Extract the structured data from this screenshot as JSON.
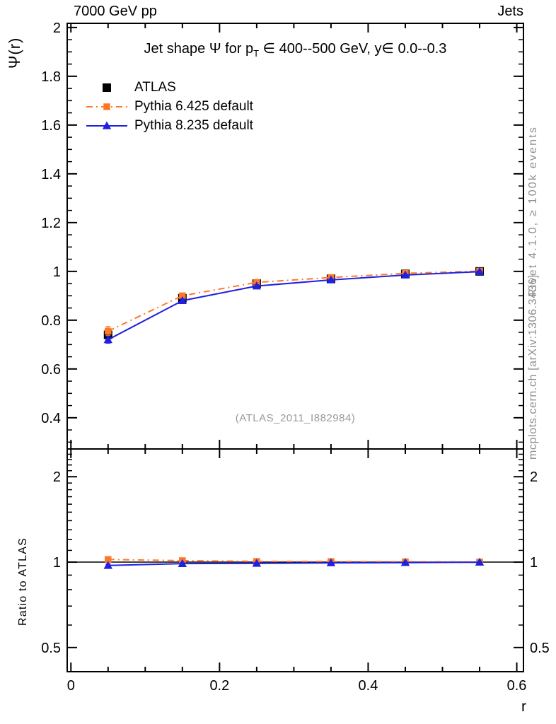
{
  "chart_data": {
    "type": "line",
    "header": {
      "left": "7000 GeV pp",
      "right": "Jets"
    },
    "main_panel": {
      "ylabel": "Ψ(r)",
      "title_pre": "Jet shape Ψ for p",
      "title_sub": "T",
      "title_post": " ∈ 400--500 GeV, y∈ 0.0--0.3",
      "watermark": "(ATLAS_2011_I882984)",
      "yscale": "linear",
      "ylim": [
        0.272,
        2.017
      ],
      "ytick_values": [
        0.4,
        0.6,
        0.8,
        1.0,
        1.2,
        1.4,
        1.6,
        1.8,
        2.0
      ],
      "ytick_labels": [
        "0.4",
        "0.6",
        "0.8",
        "1",
        "1.2",
        "1.4",
        "1.6",
        "1.8",
        "2"
      ],
      "yminor_step": 0.05
    },
    "ratio_panel": {
      "ylabel": "Ratio to ATLAS",
      "yscale": "log",
      "ylim": [
        0.411,
        2.505
      ],
      "ytick_values": [
        0.5,
        1.0,
        2.0
      ],
      "ytick_labels": [
        "0.5",
        "1",
        "2"
      ],
      "yminor_values": [
        0.6,
        0.7,
        0.8,
        0.9,
        1.1,
        1.2,
        1.3,
        1.4,
        1.5,
        1.6,
        1.7,
        1.8,
        1.9,
        2.1,
        2.2,
        2.3,
        2.4
      ],
      "reference_value": 1.0
    },
    "xaxis": {
      "label": "r",
      "xlim": [
        -0.005,
        0.609
      ],
      "tick_values": [
        0,
        0.2,
        0.4,
        0.6
      ],
      "tick_labels": [
        "0",
        "0.2",
        "0.4",
        "0.6"
      ],
      "minor_step": 0.05
    },
    "x": [
      0.05,
      0.15,
      0.25,
      0.35,
      0.45,
      0.55
    ],
    "series": [
      {
        "name": "ATLAS",
        "color": "#000000",
        "marker": "square",
        "marker_size": 12,
        "line": "none",
        "values": [
          0.74,
          0.89,
          0.95,
          0.97,
          0.99,
          1.0
        ],
        "errors": [
          0.012,
          0.008,
          0.006,
          0.004,
          0.003,
          0.002
        ]
      },
      {
        "name": "Pythia 6.425 default",
        "color": "#ff7828",
        "marker": "square",
        "marker_size": 9.5,
        "line": "dashdot",
        "values": [
          0.755,
          0.9,
          0.955,
          0.975,
          0.992,
          1.001
        ],
        "errors": [
          0.018,
          0.008,
          0.005,
          0.004,
          0.003,
          0.002
        ],
        "ratio": [
          1.022,
          1.012,
          1.006,
          1.005,
          1.003,
          1.001
        ],
        "ratio_errors": [
          0.014,
          0.007,
          0.004,
          0.003,
          0.002,
          0.002
        ]
      },
      {
        "name": "Pythia 8.235 default",
        "color": "#2020e0",
        "marker": "triangle",
        "marker_size": 12,
        "line": "solid",
        "values": [
          0.72,
          0.88,
          0.94,
          0.965,
          0.985,
          0.999
        ],
        "errors": [
          0.014,
          0.007,
          0.005,
          0.004,
          0.003,
          0.002
        ],
        "ratio": [
          0.973,
          0.988,
          0.99,
          0.994,
          0.996,
          0.999
        ],
        "ratio_errors": [
          0.012,
          0.006,
          0.004,
          0.003,
          0.002,
          0.002
        ]
      }
    ],
    "side_notes": [
      "Rivet 4.1.0, ≥ 100k events",
      "mcplots.cern.ch [arXiv:1306.3436]"
    ],
    "colors": {
      "frame": "#000000",
      "gray_text": "#8f8f8f",
      "pythia6": "#ff7828",
      "pythia8": "#2020e0"
    }
  }
}
